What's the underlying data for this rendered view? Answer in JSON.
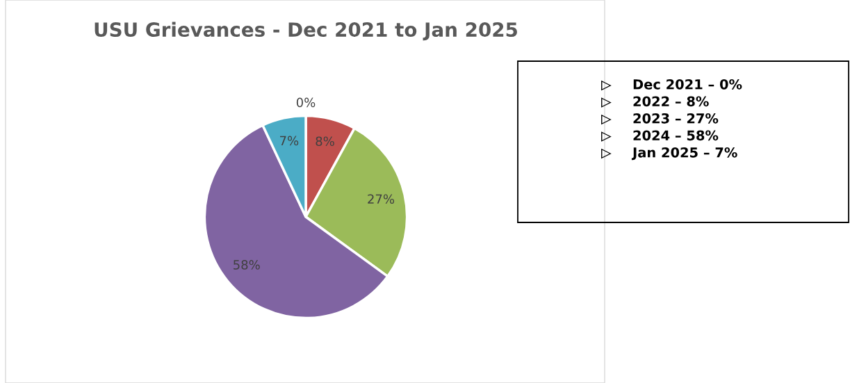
{
  "chart_data": {
    "type": "pie",
    "title": "USU Grievances - Dec 2021 to Jan 2025",
    "categories": [
      null,
      null,
      null,
      null,
      null
    ],
    "values": [
      0,
      8,
      27,
      58,
      7
    ],
    "colors": [
      "#4f81bd",
      "#c0504d",
      "#9bbb59",
      "#8064a2",
      "#4bacc6"
    ],
    "data_labels": true,
    "value_labels": [
      "0%",
      "8%",
      "27%",
      "58%",
      "7%"
    ],
    "annotations": [
      "Dec 2021 – 0%",
      "2022 – 8%",
      "2023 – 27%",
      "2024 – 58%",
      "Jan 2025 – 7%"
    ]
  }
}
